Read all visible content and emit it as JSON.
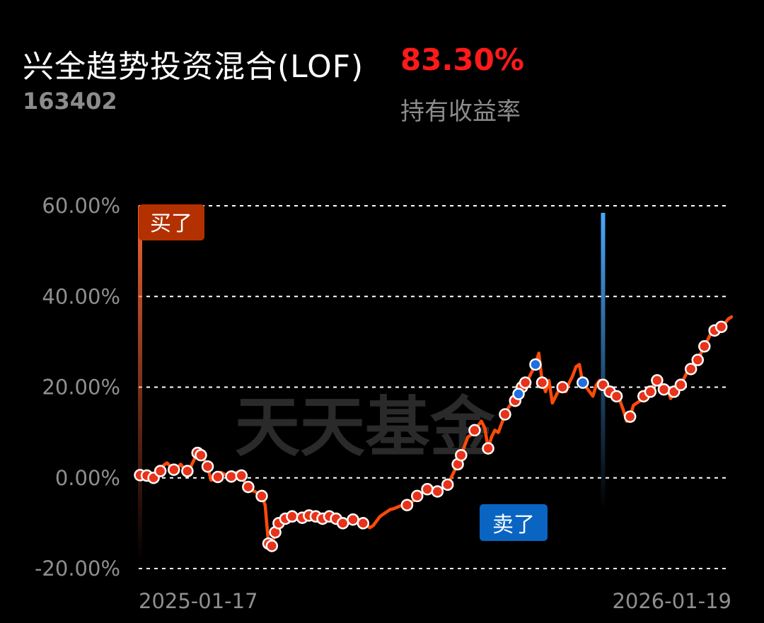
{
  "fund": {
    "name": "兴全趋势投资混合(LOF)",
    "code": "163402",
    "return_value": "83.30%",
    "return_label": "持有收益率"
  },
  "colors": {
    "line": "#ff4a0a",
    "buy_marker": "#b33000",
    "sell_marker": "#0a64c2",
    "return_red": "#ff1a1a",
    "sell_dot": "#1f6fe0"
  },
  "chart_data": {
    "type": "line",
    "title": "",
    "xlabel": "",
    "ylabel": "",
    "y_ticks": [
      "60.00%",
      "40.00%",
      "20.00%",
      "0.00%",
      "-20.00%"
    ],
    "y_tick_values": [
      60,
      40,
      20,
      0,
      -20
    ],
    "ylim": [
      -20,
      60
    ],
    "x_labels": [
      "2025-01-17",
      "2026-01-19"
    ],
    "grid": true,
    "watermark": "天天基金",
    "buy_annotation": {
      "label": "买了",
      "x_index": 0
    },
    "sell_annotation": {
      "label": "卖了",
      "x_index": 137
    },
    "series": [
      {
        "values": [
          0.6,
          0.8,
          0.5,
          0.3,
          0.0,
          -0.3,
          1.5,
          2.8,
          3.3,
          2.5,
          1.8,
          2.2,
          3.0,
          2.0,
          1.5,
          2.5,
          4.0,
          5.5,
          5.0,
          4.0,
          2.5,
          -0.5,
          -0.3,
          0.2,
          1.2,
          0.8,
          0.5,
          0.3,
          1.0,
          1.3,
          0.5,
          -1.0,
          -2.0,
          -2.8,
          -3.0,
          -3.5,
          -4.0,
          -6.0,
          -14.5,
          -15.0,
          -12.0,
          -10.0,
          -9.5,
          -9.0,
          -9.0,
          -8.5,
          -8.0,
          -8.5,
          -8.8,
          -9.0,
          -8.3,
          -8.5,
          -8.5,
          -8.8,
          -9.0,
          -8.7,
          -8.5,
          -8.8,
          -9.0,
          -9.5,
          -10.0,
          -9.8,
          -9.5,
          -9.2,
          -9.0,
          -9.5,
          -10.0,
          -10.5,
          -11.0,
          -10.5,
          -9.5,
          -8.5,
          -8.0,
          -7.5,
          -7.0,
          -6.8,
          -6.5,
          -6.2,
          -6.0,
          -6.0,
          -5.5,
          -5.0,
          -4.0,
          -3.5,
          -3.0,
          -2.5,
          -2.0,
          -2.5,
          -3.0,
          -2.5,
          -2.0,
          -1.5,
          0.0,
          1.5,
          3.0,
          5.0,
          7.0,
          9.0,
          9.5,
          10.5,
          11.5,
          12.5,
          11.0,
          6.5,
          9.0,
          10.5,
          10.0,
          12.0,
          14.0,
          15.5,
          16.5,
          17.0,
          18.5,
          20.0,
          21.0,
          22.0,
          23.5,
          25.0,
          27.5,
          21.0,
          19.0,
          21.5,
          16.5,
          18.0,
          19.5,
          20.0,
          19.0,
          21.0,
          22.5,
          24.5,
          25.0,
          21.0,
          20.0,
          19.0,
          18.0,
          20.5,
          21.5,
          20.5,
          19.5,
          19.0,
          18.5,
          18.0,
          17.0,
          15.0,
          12.5,
          13.5,
          16.0,
          16.5,
          17.0,
          18.0,
          17.5,
          19.0,
          20.5,
          21.5,
          20.0,
          19.5,
          20.0,
          17.5,
          19.0,
          19.5,
          20.5,
          22.0,
          23.5,
          24.0,
          24.5,
          26.0,
          27.5,
          29.0,
          30.5,
          32.0,
          32.5,
          33.0,
          33.3,
          34.0,
          35.0,
          35.5
        ]
      }
    ],
    "markers": {
      "buy_points": [
        0,
        2,
        4,
        6,
        10,
        14,
        17,
        18,
        20,
        23,
        27,
        30,
        32,
        36,
        38,
        39,
        40,
        41,
        43,
        45,
        48,
        50,
        52,
        54,
        56,
        58,
        60,
        63,
        66,
        79,
        82,
        85,
        88,
        91,
        94,
        95,
        99,
        103,
        108,
        111,
        113,
        114,
        119,
        125,
        137,
        139,
        141,
        145,
        149,
        151,
        153,
        155,
        158,
        160,
        163,
        165,
        167,
        170,
        172
      ],
      "sell_points": [
        112,
        117,
        131
      ]
    }
  }
}
